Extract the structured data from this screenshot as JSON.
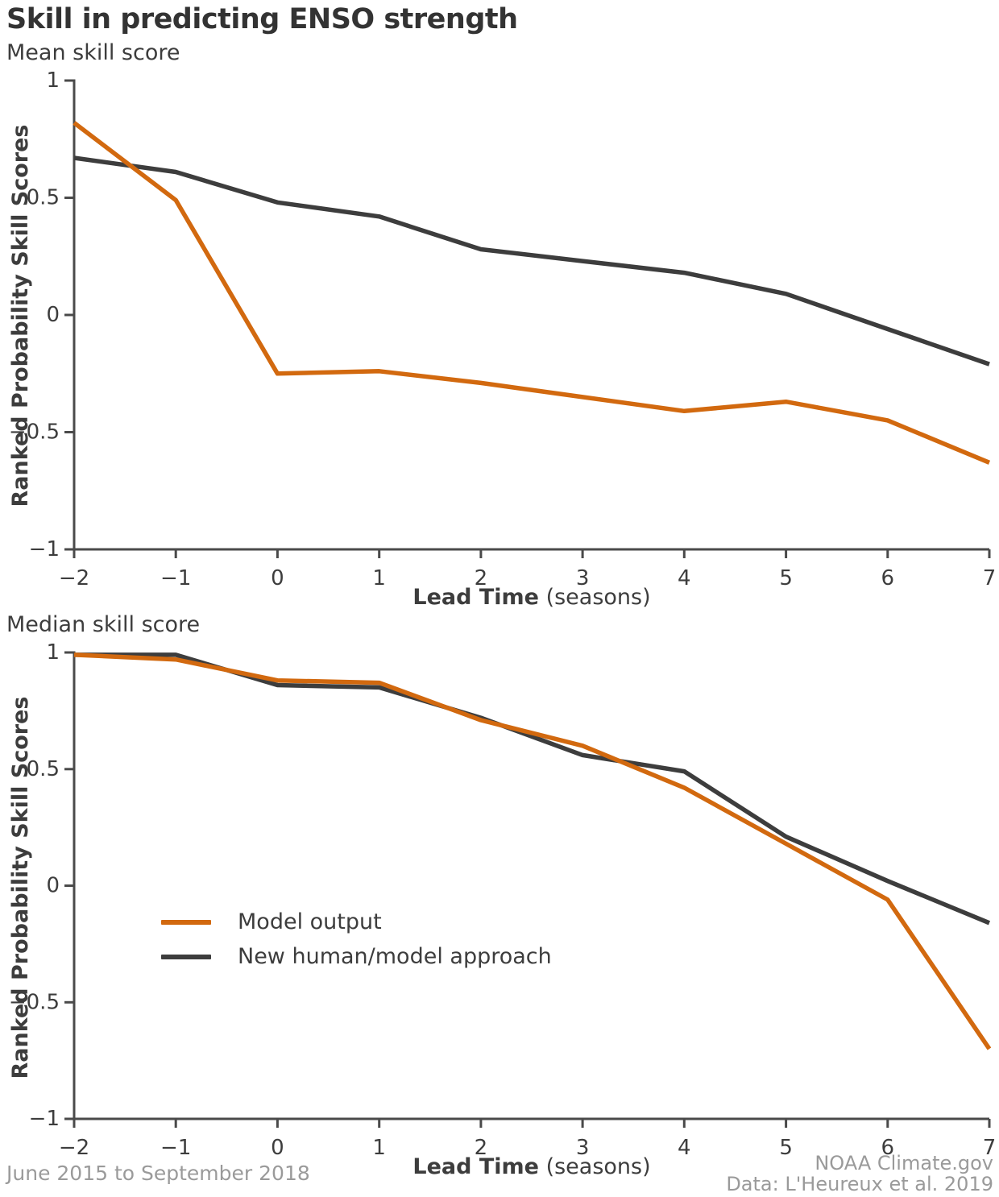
{
  "page": {
    "title": "Skill in predicting ENSO strength",
    "footer_left": "June 2015 to September 2018",
    "footer_right_line1": "NOAA Climate.gov",
    "footer_right_line2": "Data: L'Heureux et al. 2019"
  },
  "colors": {
    "orange": "#d2690f",
    "dark": "#3d3d3d",
    "axis": "#4a4a4a",
    "title": "#333333",
    "muted": "#9a9a9a"
  },
  "legend": {
    "items": [
      {
        "label": "Model output",
        "color_key": "orange"
      },
      {
        "label": "New human/model approach",
        "color_key": "dark"
      }
    ]
  },
  "chart_data": [
    {
      "id": "mean",
      "type": "line",
      "title": "Mean skill score",
      "ylabel": "Ranked Probability Skill Scores",
      "xlabel": "Lead Time",
      "xlabel_suffix": "(seasons)",
      "xlim": [
        -2,
        7
      ],
      "ylim": [
        -1,
        1
      ],
      "grid": false,
      "x": [
        -2,
        -1,
        0,
        1,
        2,
        3,
        4,
        5,
        6,
        7
      ],
      "x_tick_labels": [
        "−2",
        "−1",
        "0",
        "1",
        "2",
        "3",
        "4",
        "5",
        "6",
        "7"
      ],
      "y_ticks": [
        1,
        0.5,
        0,
        -0.5,
        -1
      ],
      "y_tick_labels": [
        "1",
        "0.5",
        "0",
        "−0.5",
        "−1"
      ],
      "series": [
        {
          "name": "Model output",
          "color_key": "orange",
          "values": [
            0.82,
            0.49,
            -0.25,
            -0.24,
            -0.29,
            -0.35,
            -0.41,
            -0.37,
            -0.45,
            -0.63
          ]
        },
        {
          "name": "New human/model approach",
          "color_key": "dark",
          "values": [
            0.67,
            0.61,
            0.48,
            0.42,
            0.28,
            0.23,
            0.18,
            0.09,
            -0.06,
            -0.21
          ]
        }
      ]
    },
    {
      "id": "median",
      "type": "line",
      "title": "Median skill score",
      "ylabel": "Ranked Probability Skill Scores",
      "xlabel": "Lead Time",
      "xlabel_suffix": "(seasons)",
      "xlim": [
        -2,
        7
      ],
      "ylim": [
        -1,
        1
      ],
      "grid": false,
      "legend_position": "inside-left",
      "x": [
        -2,
        -1,
        0,
        1,
        2,
        3,
        4,
        5,
        6,
        7
      ],
      "x_tick_labels": [
        "−2",
        "−1",
        "0",
        "1",
        "2",
        "3",
        "4",
        "5",
        "6",
        "7"
      ],
      "y_ticks": [
        1,
        0.5,
        0,
        -0.5,
        -1
      ],
      "y_tick_labels": [
        "1",
        "0.5",
        "0",
        "−0.5",
        "−1"
      ],
      "series": [
        {
          "name": "Model output",
          "color_key": "orange",
          "values": [
            0.99,
            0.97,
            0.88,
            0.87,
            0.71,
            0.6,
            0.42,
            0.18,
            -0.06,
            -0.7
          ]
        },
        {
          "name": "New human/model approach",
          "color_key": "dark",
          "values": [
            0.99,
            0.99,
            0.86,
            0.85,
            0.72,
            0.56,
            0.49,
            0.21,
            0.02,
            -0.16
          ]
        }
      ]
    }
  ]
}
